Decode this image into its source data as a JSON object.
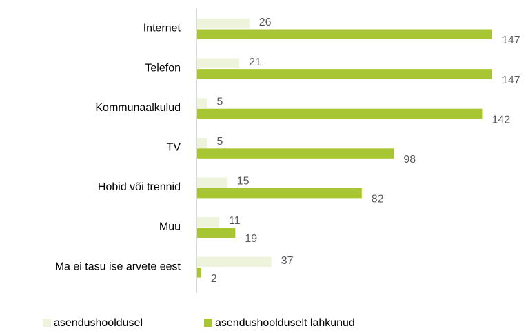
{
  "chart_data": {
    "type": "bar",
    "orientation": "horizontal",
    "categories": [
      "Internet",
      "Telefon",
      "Kommunaalkulud",
      "TV",
      "Hobid või trennid",
      "Muu",
      "Ma ei tasu ise arvete eest"
    ],
    "series": [
      {
        "name": "asendushooldusel",
        "color": "#eef3dc",
        "values": [
          26,
          21,
          5,
          5,
          15,
          11,
          37
        ]
      },
      {
        "name": "asendushoolduselt lahkunud",
        "color": "#a8c634",
        "values": [
          147,
          147,
          142,
          98,
          82,
          19,
          2
        ]
      }
    ],
    "legend": "bottom"
  }
}
